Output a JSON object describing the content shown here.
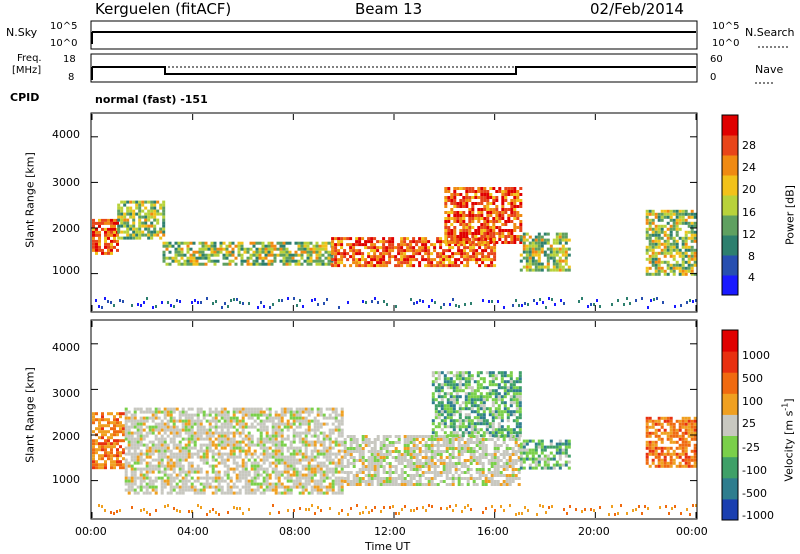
{
  "header": {
    "station": "Kerguelen (fitACF)",
    "beam": "Beam 13",
    "date": "02/Feb/2014"
  },
  "nsky_panel": {
    "left_label": "N.Sky",
    "left_ticks": [
      "10^5",
      "10^0"
    ],
    "right_ticks": [
      "10^5",
      "10^0"
    ],
    "right_label": "N.Search"
  },
  "freq_panel": {
    "label_line1": "Freq.",
    "label_line2": "[MHz]",
    "left_ticks": [
      "18",
      "8"
    ],
    "right_ticks": [
      "60",
      "0"
    ],
    "right_label": "Nave"
  },
  "cpid_panel": {
    "label": "CPID",
    "value": "normal (fast) -151"
  },
  "x_axis": {
    "label": "Time UT",
    "ticks": [
      "00:00",
      "04:00",
      "08:00",
      "12:00",
      "16:00",
      "20:00",
      "00:00"
    ]
  },
  "chart_data": [
    {
      "type": "heatmap",
      "name": "power",
      "ylabel": "Slant Range [km]",
      "yticks": [
        "4000",
        "3000",
        "2000",
        "1000"
      ],
      "ylim": [
        180,
        4500
      ],
      "xlim_hours": [
        0,
        24
      ],
      "colorbar": {
        "label": "Power [dB]",
        "ticks": [
          "28",
          "24",
          "20",
          "16",
          "12",
          "8",
          "4"
        ],
        "range": [
          0,
          32
        ],
        "colors": [
          "#1a1aff",
          "#274fb0",
          "#2d7f6e",
          "#5fa060",
          "#b8d23a",
          "#f2c21a",
          "#f08a12",
          "#e8451a",
          "#e00000"
        ]
      },
      "echo_bands": [
        {
          "t0": 0.0,
          "t1": 1.0,
          "r0": 1450,
          "r1": 2200,
          "level": "strong"
        },
        {
          "t0": 1.0,
          "t1": 2.8,
          "r0": 1800,
          "r1": 2600,
          "level": "medium"
        },
        {
          "t0": 2.8,
          "t1": 9.5,
          "r0": 1200,
          "r1": 1700,
          "level": "medium"
        },
        {
          "t0": 9.5,
          "t1": 16.0,
          "r0": 1150,
          "r1": 1800,
          "level": "strong"
        },
        {
          "t0": 14.0,
          "t1": 17.0,
          "r0": 1700,
          "r1": 2900,
          "level": "strong"
        },
        {
          "t0": 17.0,
          "t1": 19.0,
          "r0": 1100,
          "r1": 1900,
          "level": "medium"
        },
        {
          "t0": 22.0,
          "t1": 24.0,
          "r0": 1000,
          "r1": 2400,
          "level": "medium"
        }
      ]
    },
    {
      "type": "heatmap",
      "name": "velocity",
      "ylabel": "Slant Range [km]",
      "yticks": [
        "4000",
        "3000",
        "2000",
        "1000"
      ],
      "ylim": [
        180,
        4500
      ],
      "xlim_hours": [
        0,
        24
      ],
      "colorbar": {
        "label": "Velocity [m s",
        "label_sup": "-1",
        "label_end": "]",
        "ticks": [
          "1000",
          "500",
          "100",
          "25",
          "-25",
          "-100",
          "-500",
          "-1000"
        ],
        "colors": [
          "#1a3fb0",
          "#2e7d8e",
          "#3fa068",
          "#7ad04a",
          "#c8c8c0",
          "#f0a020",
          "#f06a10",
          "#e83010",
          "#e00000"
        ]
      },
      "echo_bands": [
        {
          "t0": 0.0,
          "t1": 1.3,
          "r0": 1300,
          "r1": 2500,
          "level": "away"
        },
        {
          "t0": 1.3,
          "t1": 10.0,
          "r0": 700,
          "r1": 2600,
          "level": "ground"
        },
        {
          "t0": 10.0,
          "t1": 17.0,
          "r0": 900,
          "r1": 2000,
          "level": "ground"
        },
        {
          "t0": 13.5,
          "t1": 17.0,
          "r0": 2000,
          "r1": 3400,
          "level": "toward"
        },
        {
          "t0": 17.0,
          "t1": 19.0,
          "r0": 1300,
          "r1": 1900,
          "level": "toward"
        },
        {
          "t0": 22.0,
          "t1": 24.0,
          "r0": 1300,
          "r1": 2400,
          "level": "away"
        }
      ]
    }
  ]
}
